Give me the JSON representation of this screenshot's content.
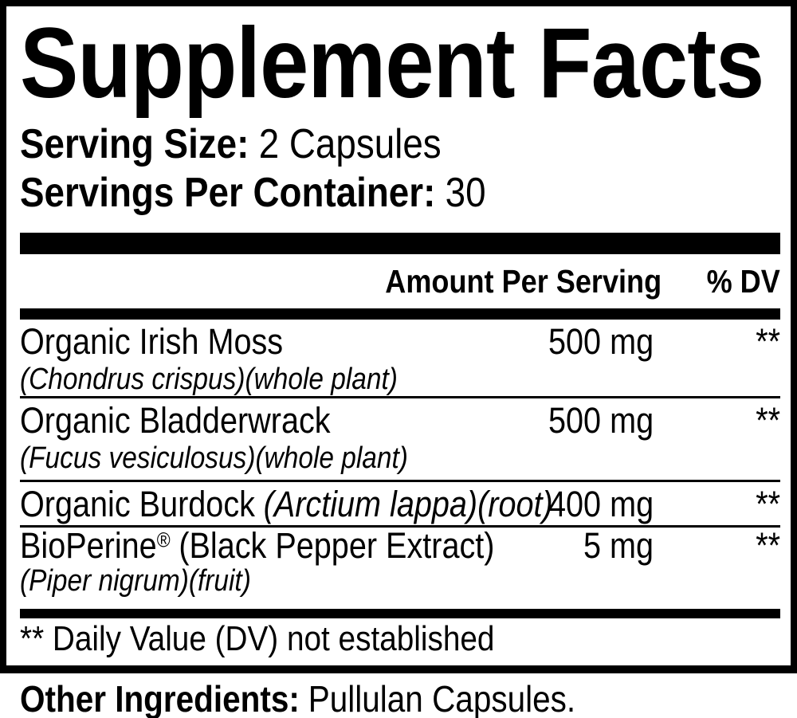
{
  "colors": {
    "ink": "#000000",
    "paper": "#ffffff"
  },
  "label": {
    "title": "Supplement Facts",
    "serving_size": {
      "label": "Serving Size:",
      "value": "2 Capsules"
    },
    "servings_per_container": {
      "label": "Servings Per Container:",
      "value": "30"
    },
    "header": {
      "amount": "Amount Per Serving",
      "dv": "% DV"
    },
    "rows": [
      {
        "name": "Organic Irish Moss",
        "sub": "(Chondrus crispus)(whole plant)",
        "amount": "500 mg",
        "dv": "**"
      },
      {
        "name": "Organic Bladderwrack",
        "sub": "(Fucus vesiculosus)(whole plant)",
        "amount": "500 mg",
        "dv": "**"
      },
      {
        "name": "Organic Burdock",
        "name_italic": "(Arctium lappa)(root)",
        "amount": "400 mg",
        "dv": "**"
      },
      {
        "name": "BioPerine",
        "name_sup": "®",
        "name_suffix": "(Black Pepper Extract)",
        "sub": "(Piper nigrum)(fruit)",
        "amount": "5 mg",
        "dv": "**"
      }
    ],
    "footnote": "** Daily Value (DV) not established",
    "other_ingredients": {
      "label": "Other Ingredients:",
      "value": "Pullulan Capsules."
    }
  }
}
